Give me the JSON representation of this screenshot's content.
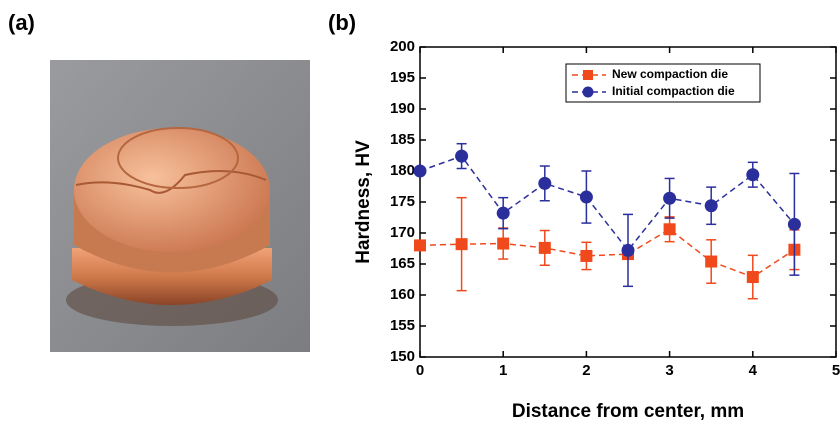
{
  "photo": {
    "label": "(a)"
  },
  "chart_data": {
    "type": "line",
    "panel_label": "(b)",
    "x_label": "Distance from center, mm",
    "y_label": "Hardness, HV",
    "x": [
      0,
      0.5,
      1,
      1.5,
      2,
      2.5,
      3,
      3.5,
      4,
      4.5
    ],
    "series": [
      {
        "name": "New compaction die",
        "color": "#f04a1c",
        "marker": "square",
        "values": [
          168,
          168.2,
          168.3,
          167.6,
          166.3,
          166.6,
          170.6,
          165.4,
          162.9,
          167.3
        ],
        "errors": [
          0,
          7.5,
          2.5,
          2.8,
          2.2,
          0,
          2,
          3.5,
          3.5,
          3.2
        ]
      },
      {
        "name": "Initial compaction die",
        "color": "#2b2f9c",
        "marker": "circle",
        "values": [
          180,
          182.4,
          173.2,
          178,
          175.8,
          167.2,
          175.6,
          174.4,
          179.4,
          171.4
        ],
        "errors": [
          0,
          2,
          2.5,
          2.8,
          4.2,
          5.8,
          3.2,
          3,
          2,
          8.2
        ]
      }
    ],
    "xlim": [
      0,
      5
    ],
    "xticks": [
      0,
      1,
      2,
      3,
      4,
      5
    ],
    "ylim": [
      150,
      200
    ],
    "yticks": [
      150,
      155,
      160,
      165,
      170,
      175,
      180,
      185,
      190,
      195,
      200
    ]
  }
}
